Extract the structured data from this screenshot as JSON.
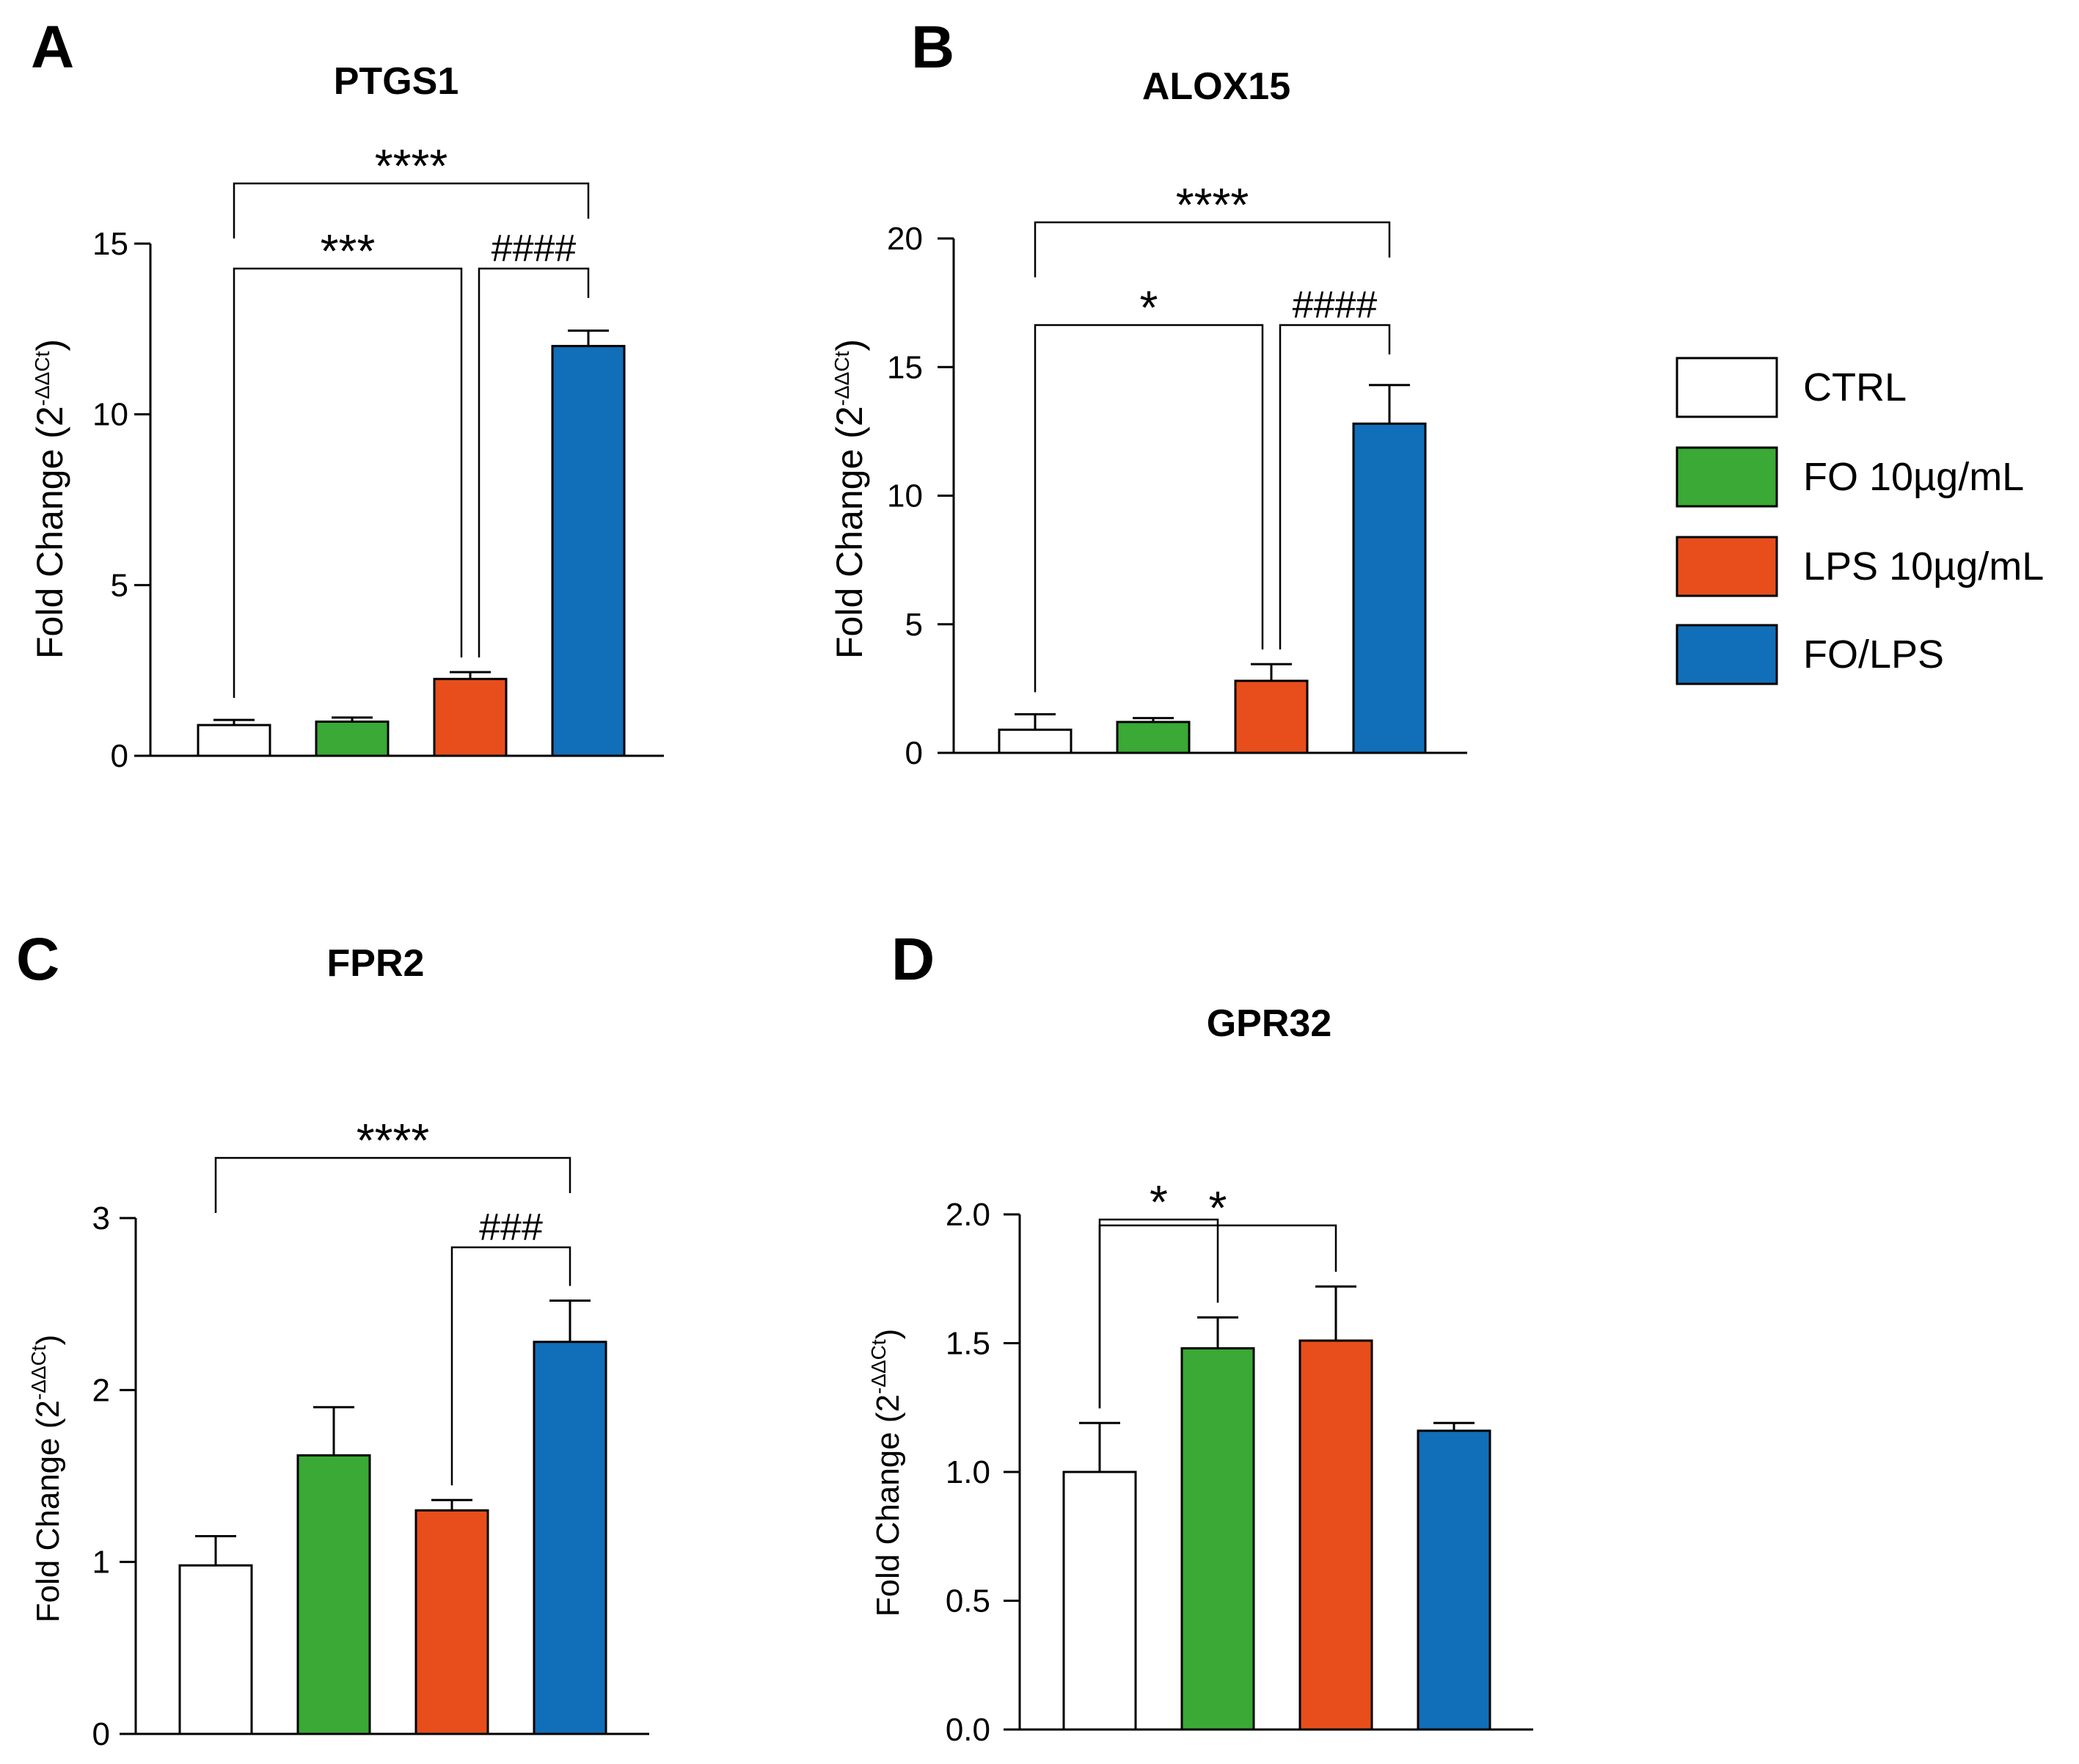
{
  "figure": {
    "panels": [
      "A",
      "B",
      "C",
      "D"
    ]
  },
  "legend": {
    "items": [
      {
        "label": "CTRL",
        "color": "#ffffff"
      },
      {
        "label": "FO 10µg/mL",
        "color": "#3aa935"
      },
      {
        "label": "LPS 10µg/mL",
        "color": "#e84e1c"
      },
      {
        "label": "FO/LPS",
        "color": "#116eb8"
      }
    ]
  },
  "chart_data": [
    {
      "panel": "A",
      "type": "bar",
      "title": "PTGS1",
      "ylabel_main": "Fold Change (2",
      "ylabel_sup": "-ΔΔCt",
      "ylabel_close": ")",
      "categories": [
        "CTRL",
        "FO 10µg/mL",
        "LPS 10µg/mL",
        "FO/LPS"
      ],
      "values": [
        0.9,
        1.0,
        2.25,
        12.0
      ],
      "errors": [
        0.15,
        0.12,
        0.2,
        0.45
      ],
      "ylim": [
        0,
        15
      ],
      "yticks": [
        0,
        5,
        10,
        15
      ],
      "tick_labels": [
        "0",
        "5",
        "10",
        "15"
      ],
      "comparisons": [
        {
          "from": 0,
          "to": 3,
          "label": "****",
          "level": 0.0,
          "drop": 3
        },
        {
          "from": 0,
          "to": 2,
          "label": "***",
          "level": 14.4,
          "drop": 2.6
        },
        {
          "from": 2,
          "to": 3,
          "label": "####",
          "level": 14.4,
          "drop": 2.6
        }
      ]
    },
    {
      "panel": "B",
      "type": "bar",
      "title": "ALOX15",
      "ylabel_main": "Fold Change (2",
      "ylabel_sup": "-ΔΔCt",
      "ylabel_close": ")",
      "categories": [
        "CTRL",
        "FO 10µg/mL",
        "LPS 10µg/mL",
        "FO/LPS"
      ],
      "values": [
        0.9,
        1.2,
        2.8,
        12.8
      ],
      "errors": [
        0.6,
        0.15,
        0.65,
        1.5
      ],
      "ylim": [
        0,
        20
      ],
      "yticks": [
        0,
        5,
        10,
        15,
        20
      ],
      "tick_labels": [
        "0",
        "5",
        "10",
        "15",
        "20"
      ],
      "comparisons": [
        {
          "from": 0,
          "to": 3,
          "label": "****",
          "level": 0.0,
          "drop": 3
        },
        {
          "from": 0,
          "to": 2,
          "label": "*",
          "level": 16.7,
          "drop": 3.5
        },
        {
          "from": 2,
          "to": 3,
          "label": "####",
          "level": 16.7,
          "drop": 3.5
        }
      ]
    },
    {
      "panel": "C",
      "type": "bar",
      "title": "FPR2",
      "ylabel_main": "Fold Change (2",
      "ylabel_sup": "-ΔΔCt",
      "ylabel_close": ")",
      "categories": [
        "CTRL",
        "FO 10µg/mL",
        "LPS 10µg/mL",
        "FO/LPS"
      ],
      "values": [
        0.98,
        1.62,
        1.3,
        2.28
      ],
      "errors": [
        0.17,
        0.28,
        0.06,
        0.24
      ],
      "ylim": [
        0,
        3
      ],
      "yticks": [
        0,
        1,
        2,
        3
      ],
      "tick_labels": [
        "0",
        "1",
        "2",
        "3"
      ],
      "comparisons": [
        {
          "from": 0,
          "to": 3,
          "label": "****",
          "level": 0.0,
          "drop": 3
        },
        {
          "from": 2,
          "to": 3,
          "label": "###",
          "level": 2.83,
          "drop": 0
        }
      ]
    },
    {
      "panel": "D",
      "type": "bar",
      "title": "GPR32",
      "ylabel_main": "Fold Change (2",
      "ylabel_sup": "-ΔΔCt",
      "ylabel_close": ")",
      "categories": [
        "CTRL",
        "FO 10µg/mL",
        "LPS 10µg/mL",
        "FO/LPS"
      ],
      "values": [
        1.0,
        1.48,
        1.51,
        1.16
      ],
      "errors": [
        0.19,
        0.12,
        0.21,
        0.03
      ],
      "ylim": [
        0,
        2.0
      ],
      "yticks": [
        0,
        0.5,
        1.0,
        1.5,
        2.0
      ],
      "tick_labels": [
        "0.0",
        "0.5",
        "1.0",
        "1.5",
        "2.0"
      ],
      "comparisons": [
        {
          "from": 0,
          "to": 1,
          "label": "*",
          "level": 1.98,
          "drop": 0
        },
        {
          "from": 0,
          "to": 2,
          "label": "*",
          "level": 2.3,
          "drop": 0
        }
      ]
    }
  ]
}
